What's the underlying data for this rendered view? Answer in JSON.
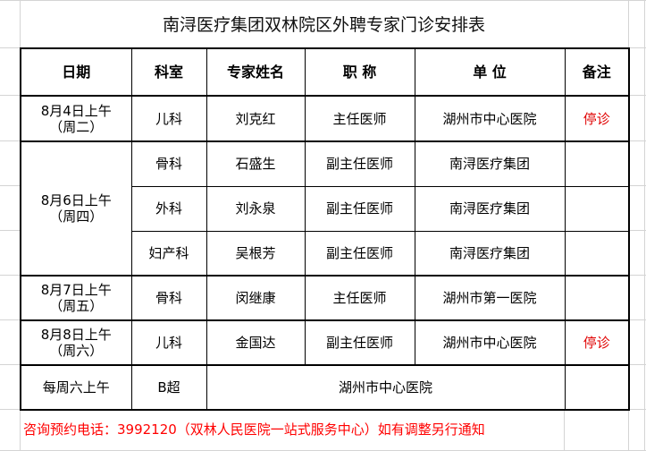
{
  "title": "南浔医疗集团双林院区外聘专家门诊安排表",
  "headers": [
    "日期",
    "科室",
    "专家姓名",
    "职 称",
    "单 位",
    "备注"
  ],
  "rows": [
    {
      "date": "8月4日上午",
      "weekday": "（周二）",
      "dept": "儿科",
      "name": "刘克红",
      "title": "主任医师",
      "unit": "湖州市中心医院",
      "note": "停诊"
    },
    {
      "date": "8月6日上午",
      "weekday": "（周四）",
      "dept": "骨科",
      "name": "石盛生",
      "title": "副主任医师",
      "unit": "南浔医疗集团",
      "note": ""
    },
    {
      "dept": "外科",
      "name": "刘永泉",
      "title": "副主任医师",
      "unit": "南浔医疗集团",
      "note": ""
    },
    {
      "dept": "妇产科",
      "name": "吴根芳",
      "title": "副主任医师",
      "unit": "南浔医疗集团",
      "note": ""
    },
    {
      "date": "8月7日上午",
      "weekday": "（周五）",
      "dept": "骨科",
      "name": "闵继康",
      "title": "主任医师",
      "unit": "湖州市第一医院",
      "note": ""
    },
    {
      "date": "8月8日上午",
      "weekday": "（周六）",
      "dept": "儿科",
      "name": "金国达",
      "title": "副主任医师",
      "unit": "湖州市中心医院",
      "note": "停诊"
    },
    {
      "date": "每周六上午",
      "dept": "B超",
      "unit": "湖州市中心医院",
      "note": ""
    }
  ],
  "footer": "咨询预约电话：3992120（双林人民医院一站式服务中心）如有调整另行通知",
  "colors": {
    "stop_note": "#e00000",
    "footer": "#ff0000",
    "grid": "#d4d4d4"
  }
}
